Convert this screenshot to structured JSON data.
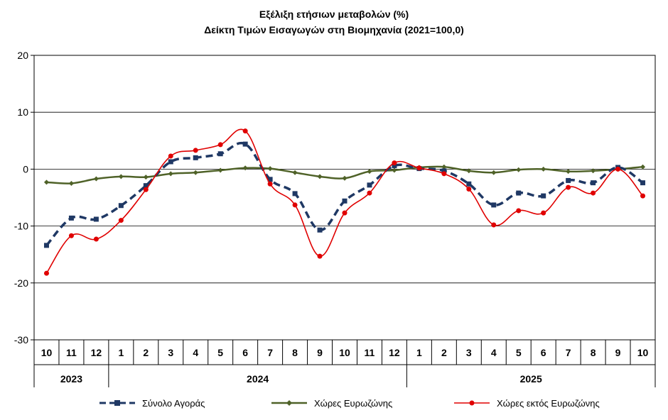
{
  "chart_data": {
    "type": "line",
    "title": "Εξέλιξη ετήσιων μεταβολών (%)",
    "subtitle": "Δείκτη Τιμών Εισαγωγών στη Βιομηχανία (2021=100,0)",
    "categories": [
      "10",
      "11",
      "12",
      "1",
      "2",
      "3",
      "4",
      "5",
      "6",
      "7",
      "8",
      "9",
      "10",
      "11",
      "12",
      "1",
      "2",
      "3",
      "4",
      "5",
      "6",
      "7",
      "8",
      "9",
      "10"
    ],
    "years": [
      {
        "label": "2023",
        "start": 0,
        "end": 2
      },
      {
        "label": "2024",
        "start": 3,
        "end": 14
      },
      {
        "label": "2025",
        "start": 15,
        "end": 24
      }
    ],
    "ylim": [
      -30,
      20
    ],
    "yticks": [
      20,
      10,
      0,
      -10,
      -20,
      -30
    ],
    "grid": true,
    "legend_position": "bottom",
    "series": [
      {
        "name": "Σύνολο Αγοράς",
        "color": "#1f3864",
        "style": "dashed",
        "marker": "square",
        "values": [
          -13.4,
          -8.6,
          -8.8,
          -6.4,
          -2.9,
          1.3,
          2.0,
          2.7,
          4.4,
          -1.8,
          -4.3,
          -10.7,
          -5.6,
          -2.8,
          0.6,
          0.1,
          -0.3,
          -2.6,
          -6.3,
          -4.2,
          -4.7,
          -2.0,
          -2.4,
          0.3,
          -2.4
        ]
      },
      {
        "name": "Χώρες Ευρωζώνης",
        "color": "#4f6228",
        "style": "solid",
        "marker": "diamond",
        "values": [
          -2.3,
          -2.5,
          -1.7,
          -1.3,
          -1.4,
          -0.8,
          -0.6,
          -0.2,
          0.2,
          0.1,
          -0.6,
          -1.3,
          -1.6,
          -0.4,
          -0.2,
          0.3,
          0.4,
          -0.3,
          -0.6,
          -0.1,
          0.0,
          -0.4,
          -0.3,
          0.0,
          0.4
        ]
      },
      {
        "name": "Χώρες εκτός Ευρωζώνης",
        "color": "#e00000",
        "style": "solid",
        "marker": "circle",
        "values": [
          -18.3,
          -11.7,
          -12.3,
          -9.0,
          -3.6,
          2.3,
          3.3,
          4.3,
          6.7,
          -2.6,
          -6.3,
          -15.3,
          -7.7,
          -4.2,
          1.1,
          0.2,
          -0.8,
          -3.5,
          -9.8,
          -7.3,
          -7.7,
          -3.2,
          -4.2,
          0.0,
          -4.7
        ]
      }
    ]
  }
}
